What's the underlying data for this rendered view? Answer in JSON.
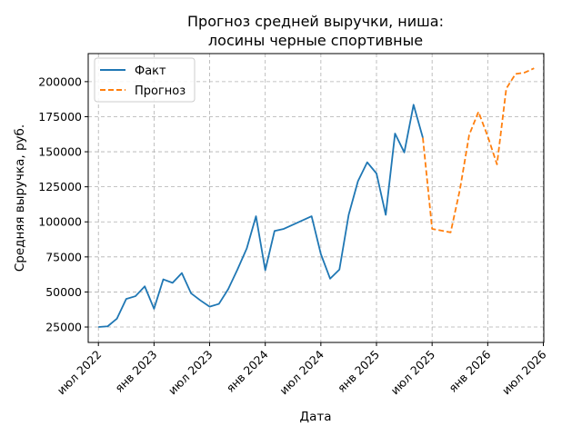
{
  "chart_data": {
    "type": "line",
    "title_line1": "Прогноз средней выручки, ниша:",
    "title_line2": "лосины черные спортивные",
    "xlabel": "Дата",
    "ylabel": "Средняя выручка, руб.",
    "x_tick_labels": [
      "июл 2022",
      "янв 2023",
      "июл 2023",
      "янв 2024",
      "июл 2024",
      "янв 2025",
      "июл 2025",
      "янв 2026",
      "июл 2026"
    ],
    "y_ticks": [
      25000,
      50000,
      75000,
      100000,
      125000,
      150000,
      175000,
      200000
    ],
    "ylim": [
      14000,
      220000
    ],
    "grid": true,
    "legend_position": "top-left",
    "colors": {
      "fact": "#1f77b4",
      "forecast": "#ff7f0e"
    },
    "series": [
      {
        "name": "Факт",
        "style": "solid",
        "points": [
          [
            "2022-07",
            25000
          ],
          [
            "2022-08",
            25500
          ],
          [
            "2022-09",
            31000
          ],
          [
            "2022-10",
            45000
          ],
          [
            "2022-11",
            47000
          ],
          [
            "2022-12",
            54000
          ],
          [
            "2023-01",
            38000
          ],
          [
            "2023-02",
            59000
          ],
          [
            "2023-03",
            56500
          ],
          [
            "2023-04",
            63500
          ],
          [
            "2023-05",
            49000
          ],
          [
            "2023-06",
            44000
          ],
          [
            "2023-07",
            39500
          ],
          [
            "2023-08",
            41500
          ],
          [
            "2023-09",
            52000
          ],
          [
            "2023-10",
            66000
          ],
          [
            "2023-11",
            81000
          ],
          [
            "2023-12",
            104000
          ],
          [
            "2024-01",
            65500
          ],
          [
            "2024-02",
            93500
          ],
          [
            "2024-03",
            95000
          ],
          [
            "2024-06",
            104000
          ],
          [
            "2024-07",
            77000
          ],
          [
            "2024-08",
            59500
          ],
          [
            "2024-09",
            66000
          ],
          [
            "2024-10",
            105000
          ],
          [
            "2024-11",
            129000
          ],
          [
            "2024-12",
            142500
          ],
          [
            "2025-01",
            134500
          ],
          [
            "2025-02",
            105000
          ],
          [
            "2025-03",
            163000
          ],
          [
            "2025-04",
            149500
          ],
          [
            "2025-05",
            183500
          ],
          [
            "2025-06",
            160000
          ]
        ]
      },
      {
        "name": "Прогноз",
        "style": "dashed",
        "points": [
          [
            "2025-06",
            160000
          ],
          [
            "2025-07",
            95000
          ],
          [
            "2025-09",
            92500
          ],
          [
            "2025-10",
            123000
          ],
          [
            "2025-11",
            162000
          ],
          [
            "2025-12",
            178500
          ],
          [
            "2026-01",
            161000
          ],
          [
            "2026-02",
            141000
          ],
          [
            "2026-03",
            195000
          ],
          [
            "2026-04",
            205500
          ],
          [
            "2026-05",
            206500
          ],
          [
            "2026-06",
            209500
          ]
        ]
      }
    ]
  }
}
